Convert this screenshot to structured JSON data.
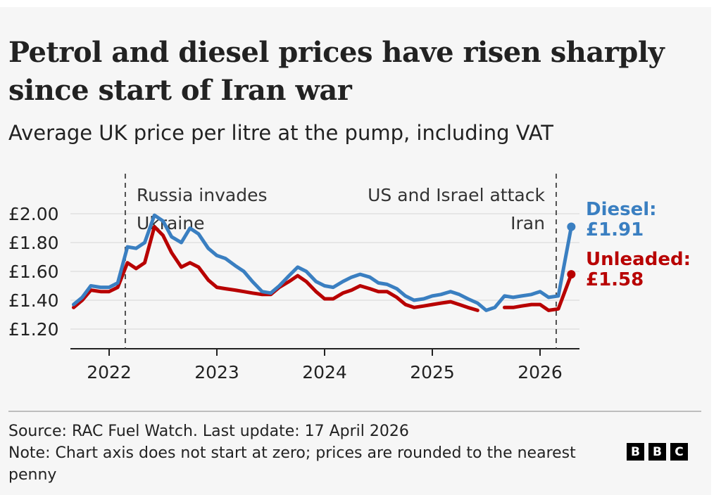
{
  "header": {
    "title": "Petrol and diesel prices have risen sharply since start of Iran war",
    "subtitle": "Average UK price per litre at the pump, including VAT"
  },
  "footer": {
    "source": "Source: RAC Fuel Watch. Last update: 17 April 2026",
    "note": "Note: Chart axis does not start at zero; prices are rounded to the nearest penny",
    "logo_letters": [
      "B",
      "B",
      "C"
    ]
  },
  "chart_data": {
    "type": "line",
    "title": "Petrol and diesel prices have risen sharply since start of Iran war",
    "subtitle": "Average UK price per litre at the pump, including VAT",
    "xlabel": "",
    "ylabel": "",
    "ylim": [
      1.0,
      2.0
    ],
    "xlim": [
      2021.66,
      2026.5
    ],
    "grid": true,
    "y_ticks": [
      2.0,
      1.8,
      1.6,
      1.4,
      1.2
    ],
    "y_tick_labels": [
      "£2.00",
      "£1.80",
      "£1.60",
      "£1.40",
      "£1.20"
    ],
    "x_ticks": [
      2022,
      2023,
      2024,
      2025,
      2026
    ],
    "x_tick_labels": [
      "2022",
      "2023",
      "2024",
      "2025",
      "2026"
    ],
    "x": [
      2021.67,
      2021.75,
      2021.83,
      2021.92,
      2022.0,
      2022.08,
      2022.17,
      2022.25,
      2022.33,
      2022.42,
      2022.5,
      2022.58,
      2022.67,
      2022.75,
      2022.83,
      2022.92,
      2023.0,
      2023.08,
      2023.17,
      2023.25,
      2023.33,
      2023.42,
      2023.5,
      2023.58,
      2023.67,
      2023.75,
      2023.83,
      2023.92,
      2024.0,
      2024.08,
      2024.17,
      2024.25,
      2024.33,
      2024.42,
      2024.5,
      2024.58,
      2024.67,
      2024.75,
      2024.83,
      2024.92,
      2025.0,
      2025.08,
      2025.17,
      2025.25,
      2025.33,
      2025.42,
      2025.5,
      2025.58,
      2025.67,
      2025.75,
      2025.83,
      2025.92,
      2026.0,
      2026.08,
      2026.17,
      2026.29
    ],
    "series": [
      {
        "name": "Diesel",
        "color": "#3a7fc1",
        "end_label": "Diesel:",
        "end_value_label": "£1.91",
        "values": [
          1.37,
          1.42,
          1.5,
          1.49,
          1.49,
          1.52,
          1.77,
          1.76,
          1.8,
          1.99,
          1.95,
          1.84,
          1.8,
          1.9,
          1.86,
          1.76,
          1.71,
          1.69,
          1.64,
          1.6,
          1.53,
          1.46,
          1.45,
          1.5,
          1.57,
          1.63,
          1.6,
          1.53,
          1.5,
          1.49,
          1.53,
          1.56,
          1.58,
          1.56,
          1.52,
          1.51,
          1.48,
          1.43,
          1.4,
          1.41,
          1.43,
          1.44,
          1.46,
          1.44,
          1.41,
          1.38,
          1.33,
          1.35,
          1.43,
          1.42,
          1.43,
          1.44,
          1.46,
          1.42,
          1.43,
          1.91
        ]
      },
      {
        "name": "Unleaded",
        "color": "#b80000",
        "end_label": "Unleaded:",
        "end_value_label": "£1.58",
        "values": [
          1.35,
          1.4,
          1.47,
          1.46,
          1.46,
          1.49,
          1.66,
          1.62,
          1.66,
          1.91,
          1.85,
          1.73,
          1.63,
          1.66,
          1.63,
          1.54,
          1.49,
          1.48,
          1.47,
          1.46,
          1.45,
          1.44,
          1.44,
          1.49,
          1.53,
          1.57,
          1.53,
          1.46,
          1.41,
          1.41,
          1.45,
          1.47,
          1.5,
          1.48,
          1.46,
          1.46,
          1.42,
          1.37,
          1.35,
          1.36,
          1.37,
          1.38,
          1.39,
          1.37,
          1.35,
          1.33,
          null,
          null,
          1.35,
          1.35,
          1.36,
          1.37,
          1.37,
          1.33,
          1.34,
          1.58
        ]
      }
    ],
    "annotations": [
      {
        "x": 2022.15,
        "label_lines": [
          "Russia invades",
          "Ukraine"
        ],
        "align": "left"
      },
      {
        "x": 2026.15,
        "label_lines": [
          "US and Israel attack",
          "Iran"
        ],
        "align": "right"
      }
    ],
    "legend": "end-of-line labels (right)"
  }
}
